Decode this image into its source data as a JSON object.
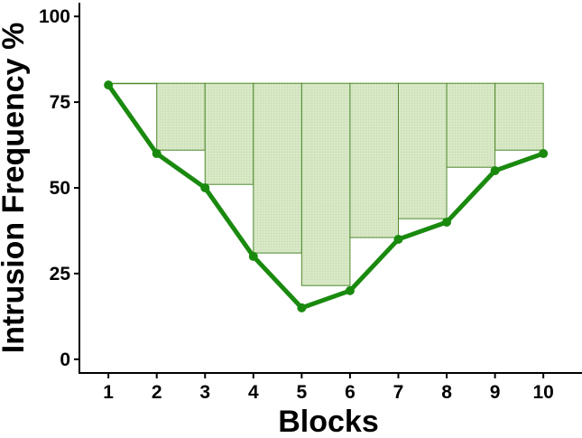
{
  "chart_data": {
    "type": "line",
    "title": "",
    "xlabel": "Blocks",
    "ylabel": "Intrusion Frequency %",
    "x": [
      1,
      2,
      3,
      4,
      5,
      6,
      7,
      8,
      9,
      10
    ],
    "xticks": [
      "1",
      "2",
      "3",
      "4",
      "5",
      "6",
      "7",
      "8",
      "9",
      "10"
    ],
    "xlim": [
      0.4,
      10.8
    ],
    "ylim": [
      -4,
      104
    ],
    "yticks": [
      0,
      25,
      50,
      75,
      100
    ],
    "ytick_labels": [
      "0",
      "25",
      "50",
      "75",
      "100"
    ],
    "grid": false,
    "series": [
      {
        "values": [
          80,
          60,
          50,
          30,
          15,
          20,
          35,
          40,
          55,
          60
        ],
        "color": "#1a8a0f"
      }
    ],
    "bars": {
      "top": 80.5,
      "segments": [
        {
          "x0": 1,
          "x1": 2,
          "bottom": 80.5
        },
        {
          "x0": 2,
          "x1": 3,
          "bottom": 61
        },
        {
          "x0": 3,
          "x1": 4,
          "bottom": 51
        },
        {
          "x0": 4,
          "x1": 5,
          "bottom": 31
        },
        {
          "x0": 5,
          "x1": 6,
          "bottom": 21.5
        },
        {
          "x0": 6,
          "x1": 7,
          "bottom": 35.5
        },
        {
          "x0": 7,
          "x1": 8,
          "bottom": 41
        },
        {
          "x0": 8,
          "x1": 9,
          "bottom": 56
        },
        {
          "x0": 9,
          "x1": 10,
          "bottom": 61
        }
      ],
      "fill_color": "#d6e6c4",
      "edge_color": "#4f8a2e"
    }
  }
}
